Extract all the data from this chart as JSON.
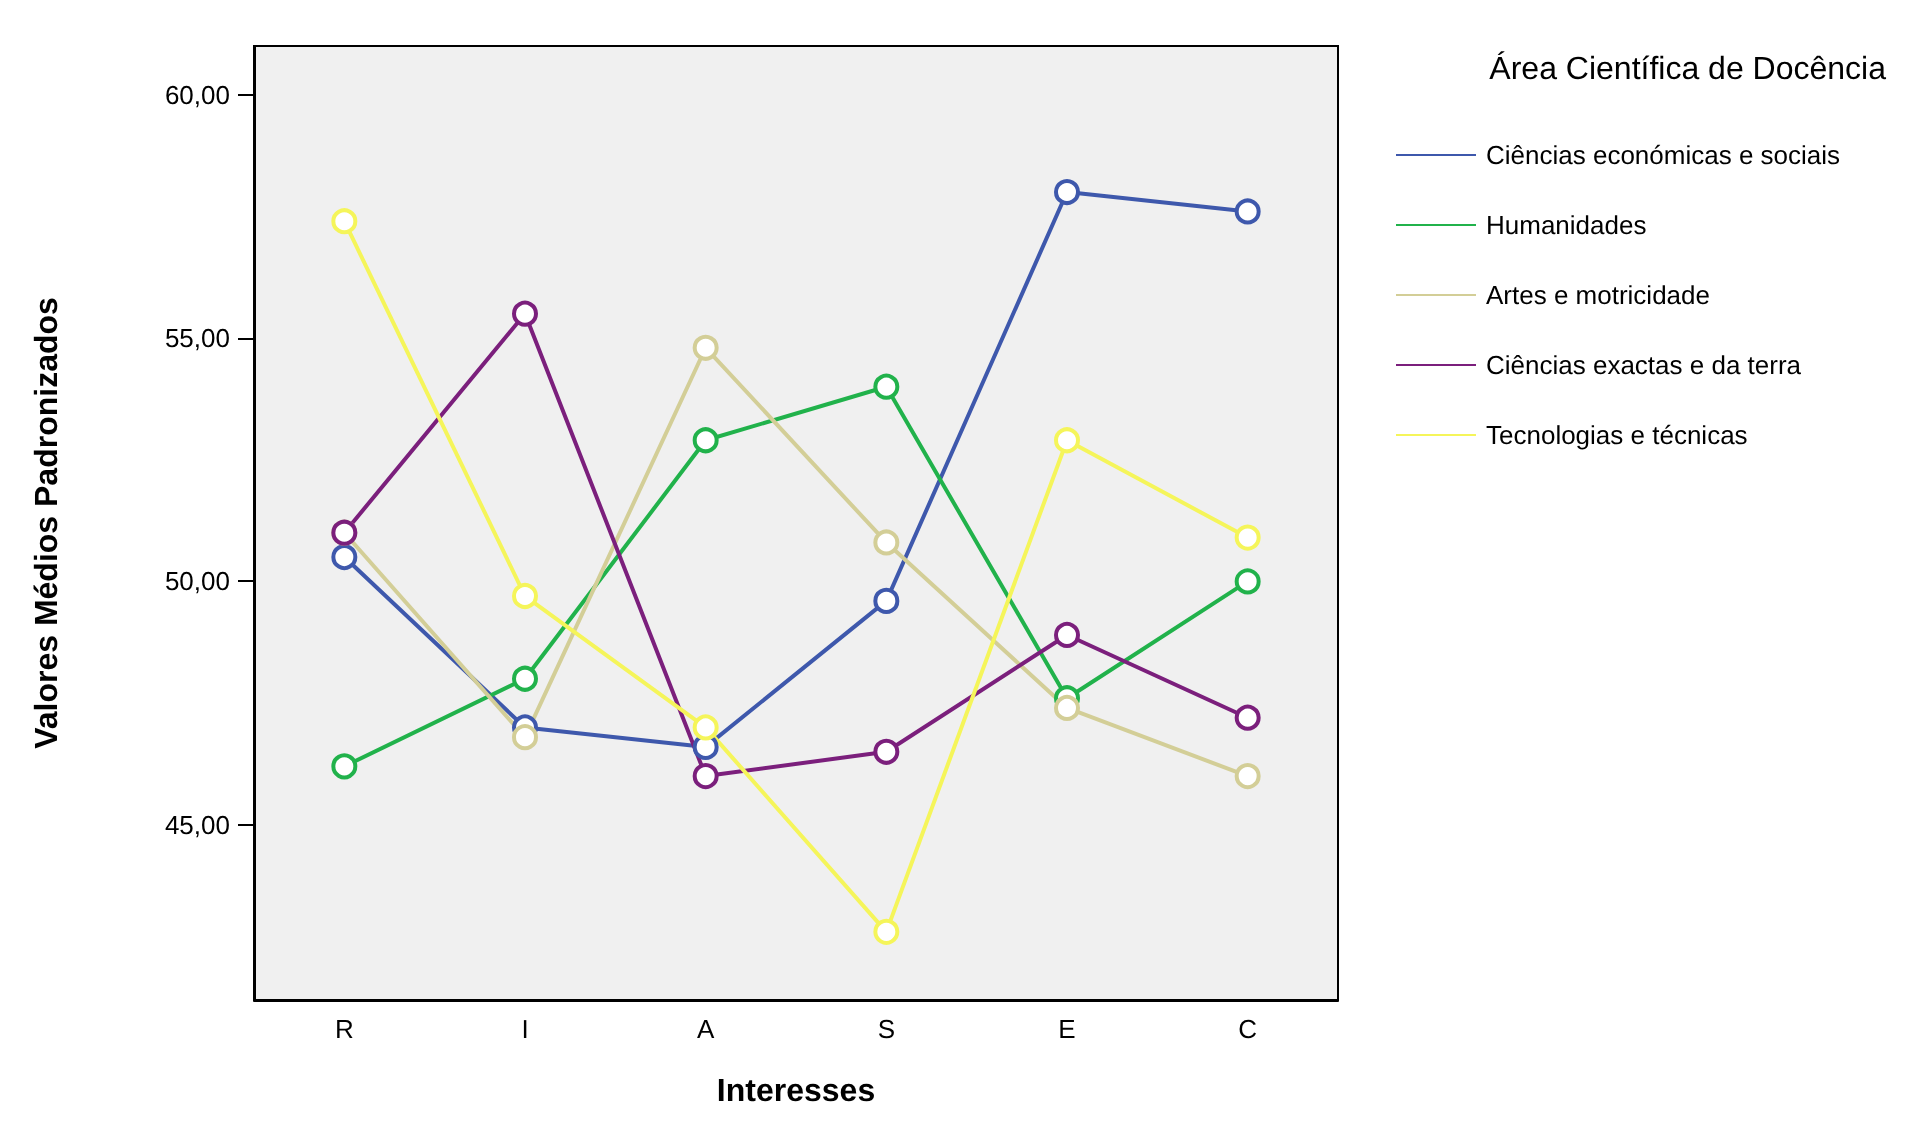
{
  "chart_data": {
    "type": "line",
    "xlabel": "Interesses",
    "ylabel": "Valores Médios Padronizados",
    "legend_title": "Área Científica de Docência",
    "categories": [
      "R",
      "I",
      "A",
      "S",
      "E",
      "C"
    ],
    "series": [
      {
        "name": "Ciências económicas e sociais",
        "color": "#3e58ac",
        "values": [
          50.5,
          47.0,
          46.6,
          49.6,
          58.0,
          57.6
        ]
      },
      {
        "name": "Humanidades",
        "color": "#21b24b",
        "values": [
          46.2,
          48.0,
          52.9,
          54.0,
          47.6,
          50.0
        ]
      },
      {
        "name": "Artes e motricidade",
        "color": "#d3ce97",
        "values": [
          51.0,
          46.8,
          54.8,
          50.8,
          47.4,
          46.0
        ]
      },
      {
        "name": "Ciências exactas e da terra",
        "color": "#7b1f7c",
        "values": [
          51.0,
          55.5,
          46.0,
          46.5,
          48.9,
          47.2
        ]
      },
      {
        "name": "Tecnologias e técnicas",
        "color": "#f5f55a",
        "values": [
          57.4,
          49.7,
          47.0,
          42.8,
          52.9,
          50.9
        ]
      }
    ],
    "ylim": [
      41.4,
      61
    ],
    "yticks": [
      {
        "value": 45,
        "label": "45,00"
      },
      {
        "value": 50,
        "label": "50,00"
      },
      {
        "value": 55,
        "label": "55,00"
      },
      {
        "value": 60,
        "label": "60,00"
      }
    ],
    "grid": false,
    "legend": "top right",
    "marker": "circle",
    "line_style": "solid"
  }
}
